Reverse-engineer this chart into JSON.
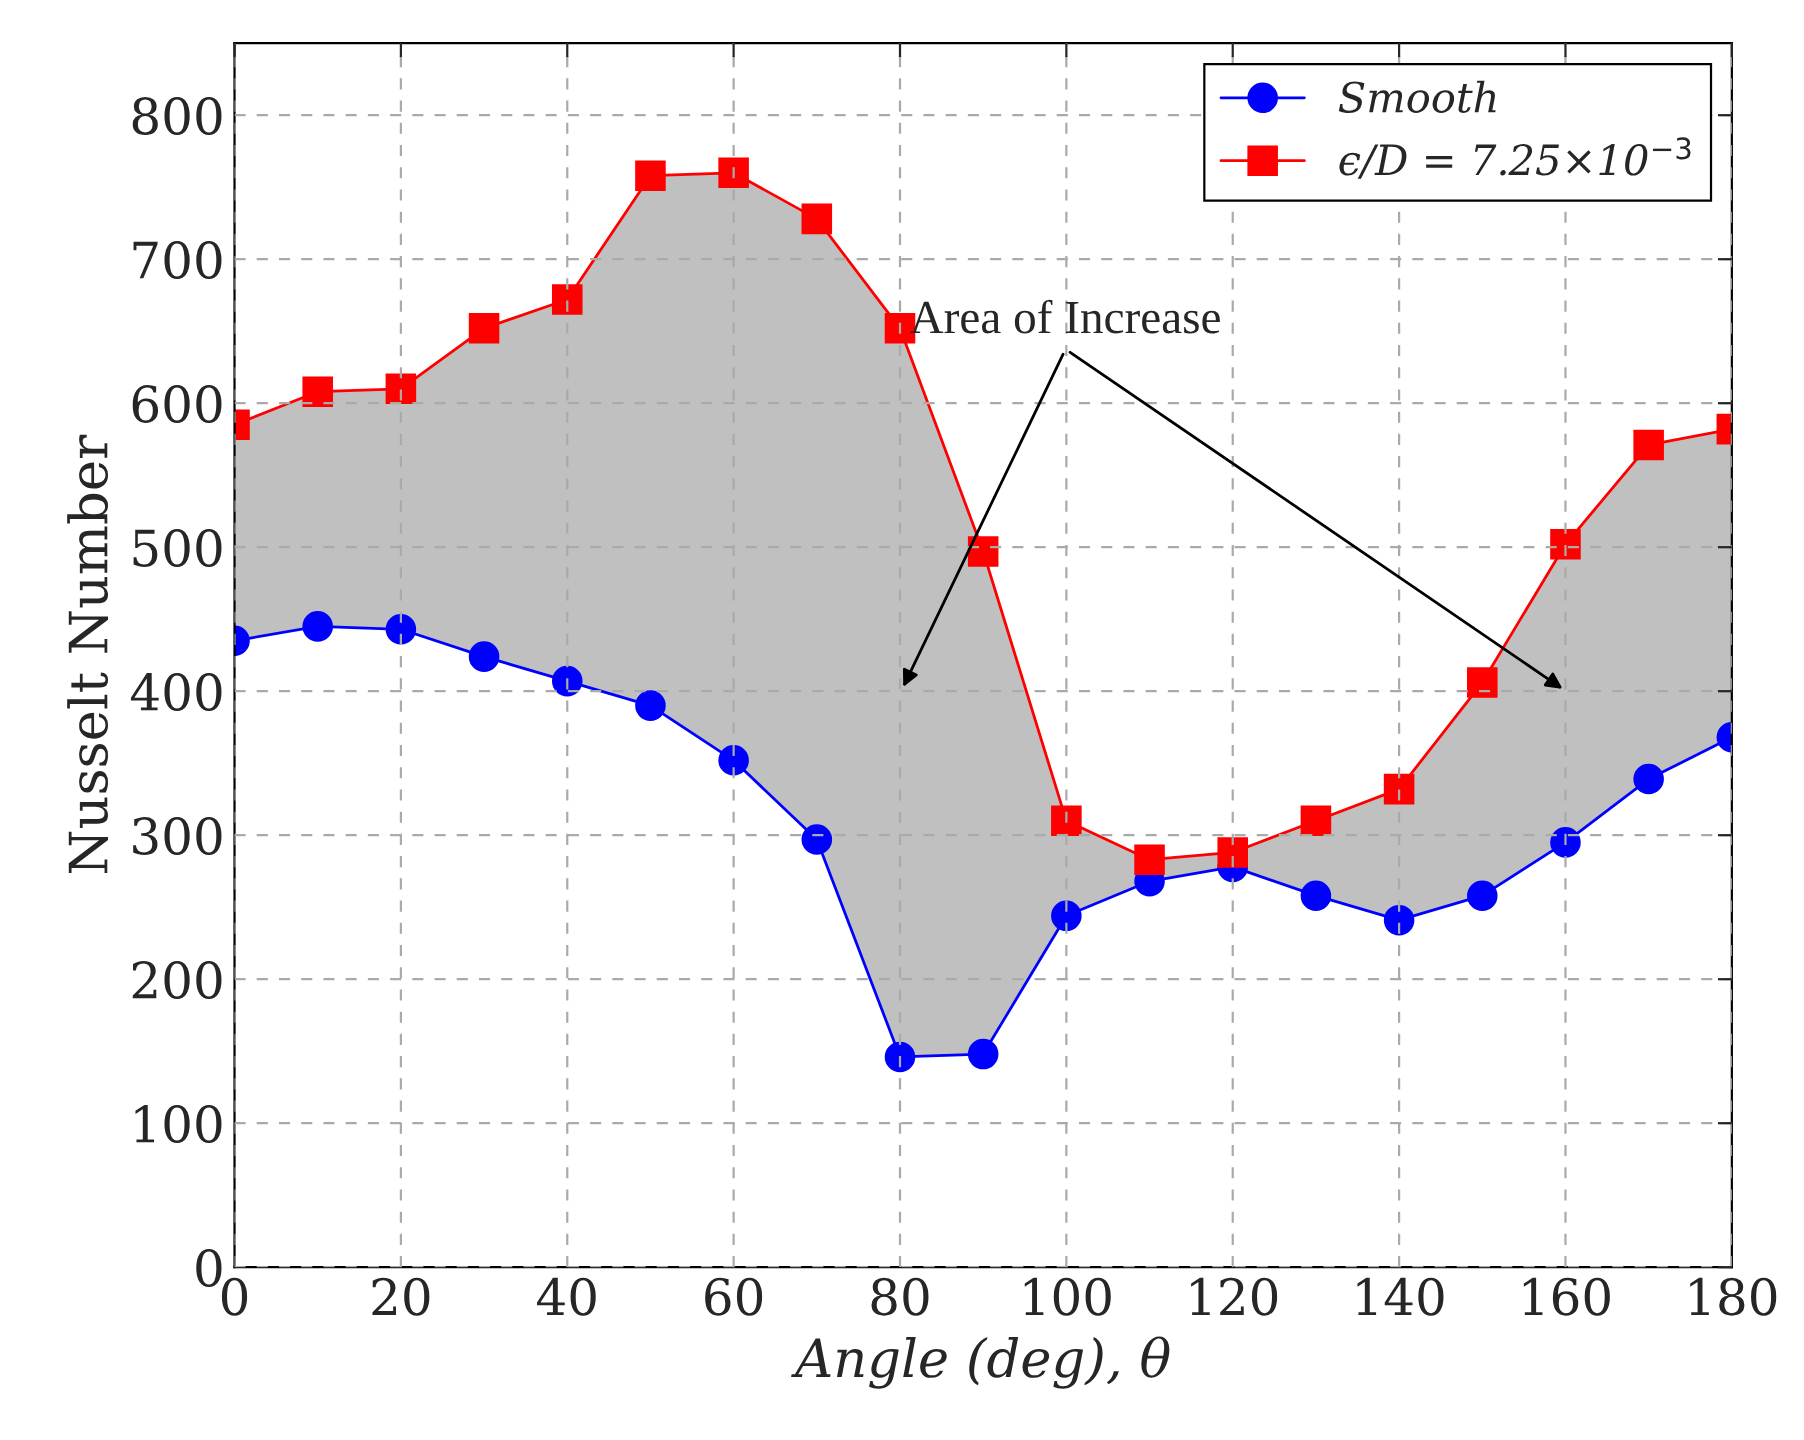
{
  "chart_data": {
    "type": "line",
    "xlabel": "Angle (deg), θ",
    "ylabel": "Nusselt Number",
    "x": [
      0,
      10,
      20,
      30,
      40,
      50,
      60,
      70,
      80,
      90,
      100,
      110,
      120,
      130,
      140,
      150,
      160,
      170,
      180
    ],
    "series": [
      {
        "name": "Smooth",
        "color": "#0000ff",
        "marker": "circle",
        "values": [
          435,
          445,
          443,
          424,
          407,
          390,
          352,
          297,
          146,
          148,
          244,
          268,
          278,
          258,
          241,
          258,
          295,
          339,
          368
        ]
      },
      {
        "name": "ϵ/D = 7.25×10$^{−3}$",
        "color": "#ff0000",
        "marker": "square",
        "values": [
          585,
          608,
          610,
          652,
          672,
          758,
          760,
          728,
          652,
          497,
          310,
          283,
          288,
          310,
          332,
          406,
          502,
          571,
          582
        ],
        "lower": [
          435,
          445,
          443,
          424,
          407,
          390,
          352,
          297,
          146,
          148,
          244,
          268,
          278,
          258,
          241,
          258,
          295,
          339,
          368
        ],
        "upper": [
          585,
          608,
          610,
          652,
          672,
          758,
          760,
          728,
          652,
          497,
          310,
          283,
          288,
          310,
          332,
          406,
          502,
          571,
          582
        ]
      }
    ],
    "annotations": [
      "Area of Increase"
    ],
    "xlim": [
      0,
      180
    ],
    "xticks": [
      0,
      20,
      40,
      60,
      80,
      100,
      120,
      140,
      160,
      180
    ],
    "ylim": [
      0,
      850
    ],
    "yticks": [
      0,
      100,
      200,
      300,
      400,
      500,
      600,
      700,
      800
    ],
    "grid": true,
    "legend": "top right",
    "line_style": "solid"
  }
}
